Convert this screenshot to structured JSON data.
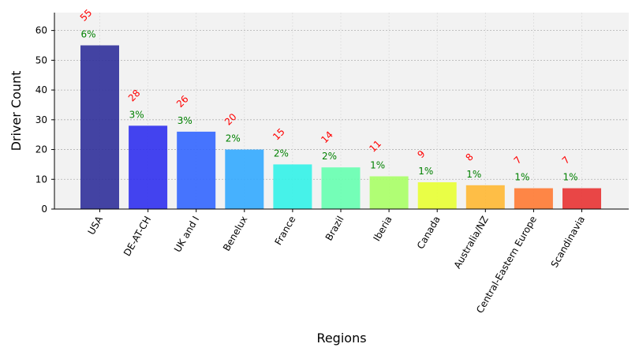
{
  "chart_data": {
    "type": "bar",
    "title": "",
    "xlabel": "Regions",
    "ylabel": "Driver Count",
    "categories": [
      "USA",
      "DE-AT-CH",
      "UK and I",
      "Benelux",
      "France",
      "Brazil",
      "Iberia",
      "Canada",
      "Australia/NZ",
      "Central-Eastern Europe",
      "Scandinavia"
    ],
    "values": [
      55,
      28,
      26,
      20,
      15,
      14,
      11,
      9,
      8,
      7,
      7
    ],
    "percent_labels": [
      "6%",
      "3%",
      "3%",
      "2%",
      "2%",
      "2%",
      "1%",
      "1%",
      "1%",
      "1%",
      "1%"
    ],
    "ylim": [
      0,
      66
    ],
    "yticks": [
      0,
      10,
      20,
      30,
      40,
      50,
      60
    ],
    "grid": true,
    "colors": [
      "#30309a",
      "#3030ee",
      "#3366ff",
      "#33aaff",
      "#33f2e8",
      "#66ffb0",
      "#a8ff66",
      "#e8ff33",
      "#ffb833",
      "#ff7a33",
      "#e83333"
    ],
    "plot_background": "#f2f2f2",
    "value_label_color": "#ff0000",
    "percent_label_color": "#008000"
  }
}
